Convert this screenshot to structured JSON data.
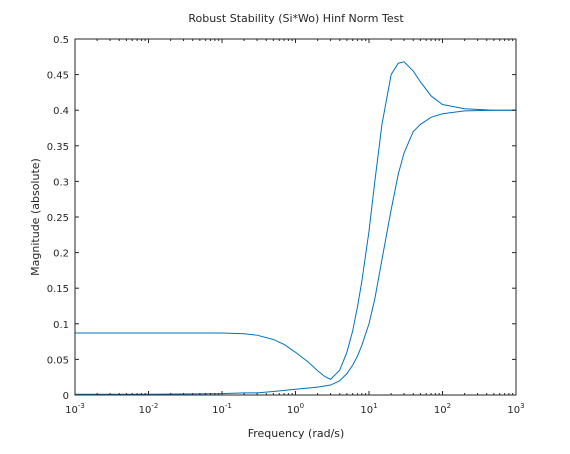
{
  "chart_data": {
    "type": "line",
    "title": "Robust Stability (Si*Wo) Hinf Norm Test",
    "xlabel": "Frequency (rad/s)",
    "ylabel": "Magnitude (absolute)",
    "xscale": "log",
    "xlim": [
      0.001,
      1000
    ],
    "ylim": [
      0,
      0.5
    ],
    "x_ticks": [
      {
        "value": 0.001,
        "base": "10",
        "exp": "-3"
      },
      {
        "value": 0.01,
        "base": "10",
        "exp": "-2"
      },
      {
        "value": 0.1,
        "base": "10",
        "exp": "-1"
      },
      {
        "value": 1,
        "base": "10",
        "exp": "0"
      },
      {
        "value": 10,
        "base": "10",
        "exp": "1"
      },
      {
        "value": 100,
        "base": "10",
        "exp": "2"
      },
      {
        "value": 1000,
        "base": "10",
        "exp": "3"
      }
    ],
    "y_ticks": [
      "0",
      "0.05",
      "0.1",
      "0.15",
      "0.2",
      "0.25",
      "0.3",
      "0.35",
      "0.4",
      "0.45",
      "0.5"
    ],
    "grid": false,
    "line_color": "#0072bd",
    "series": [
      {
        "x": [
          0.001,
          0.01,
          0.1,
          0.2,
          0.3,
          0.5,
          0.7,
          1,
          1.5,
          2,
          2.5,
          3,
          4,
          5,
          6,
          7,
          8,
          10,
          12,
          15,
          20,
          25,
          30,
          40,
          50,
          70,
          100,
          200,
          500,
          1000
        ],
        "y": [
          0.087,
          0.087,
          0.087,
          0.086,
          0.084,
          0.078,
          0.071,
          0.06,
          0.046,
          0.034,
          0.026,
          0.022,
          0.035,
          0.06,
          0.09,
          0.125,
          0.16,
          0.23,
          0.3,
          0.38,
          0.45,
          0.466,
          0.468,
          0.455,
          0.44,
          0.42,
          0.408,
          0.402,
          0.4,
          0.4
        ]
      },
      {
        "x": [
          0.001,
          0.01,
          0.1,
          0.2,
          0.3,
          0.5,
          1,
          2,
          3,
          4,
          5,
          6,
          7,
          8,
          10,
          12,
          15,
          20,
          25,
          30,
          40,
          50,
          70,
          100,
          200,
          500,
          1000
        ],
        "y": [
          0.001,
          0.001,
          0.002,
          0.003,
          0.003,
          0.005,
          0.008,
          0.011,
          0.014,
          0.02,
          0.03,
          0.042,
          0.055,
          0.07,
          0.1,
          0.135,
          0.19,
          0.26,
          0.31,
          0.34,
          0.37,
          0.38,
          0.39,
          0.395,
          0.399,
          0.4,
          0.4
        ]
      }
    ]
  }
}
